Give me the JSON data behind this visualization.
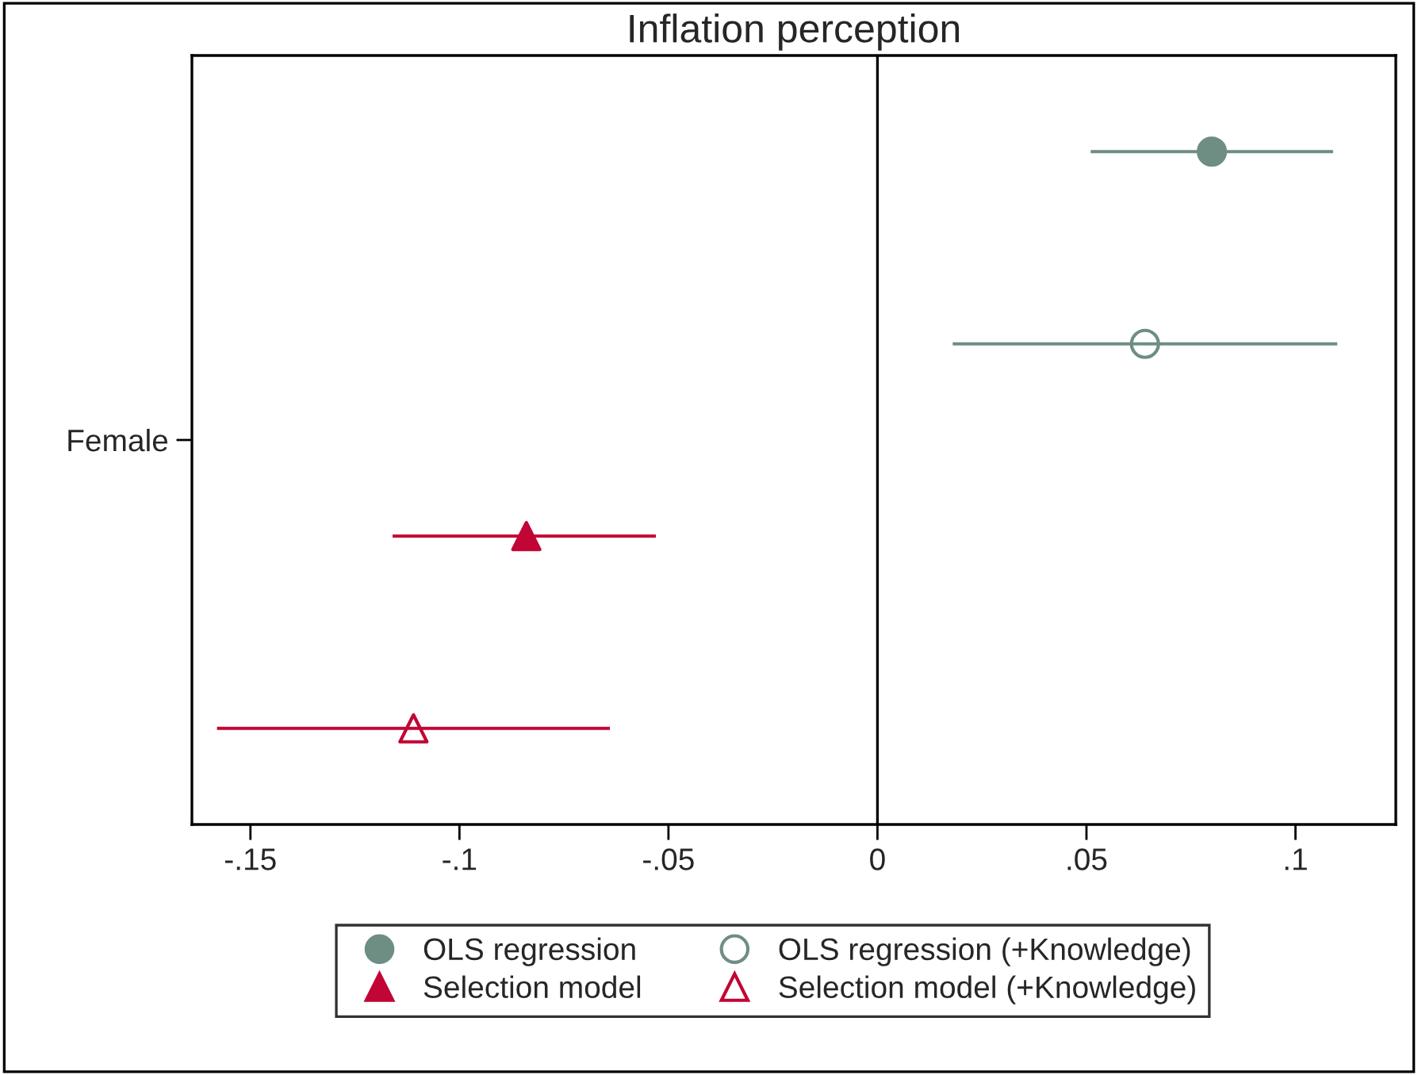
{
  "chart_data": {
    "type": "scatter",
    "orientation": "horizontal",
    "title": "Inflation perception",
    "categories": [
      null,
      null,
      null,
      null
    ],
    "series": [
      {
        "name": "OLS regression",
        "color": "#6e8e84",
        "marker": "circle",
        "values": [
          0.08,
          null,
          null,
          null
        ],
        "errors": [
          [
            0.051,
            0.109
          ],
          null,
          null,
          null
        ]
      },
      {
        "name": "OLS regression (+Knowledge)",
        "color": "#6e8e84",
        "marker": "circle",
        "values": [
          null,
          0.064,
          null,
          null
        ],
        "errors": [
          null,
          [
            0.018,
            0.11
          ],
          null,
          null
        ]
      },
      {
        "name": "Selection model",
        "color": "#c10534",
        "marker": "triangle",
        "values": [
          null,
          null,
          -0.084,
          null
        ],
        "errors": [
          null,
          null,
          [
            -0.116,
            -0.053
          ],
          null
        ]
      },
      {
        "name": "Selection model (+Knowledge)",
        "color": "#c10534",
        "marker": "triangle",
        "values": [
          null,
          null,
          null,
          -0.111
        ],
        "errors": [
          null,
          null,
          null,
          [
            -0.158,
            -0.064
          ]
        ]
      }
    ],
    "annotations": [
      "Female"
    ],
    "xlim": [
      -0.164,
      0.124
    ],
    "xticks": [
      {
        "value": -0.15,
        "label": "-.15"
      },
      {
        "value": -0.1,
        "label": "-.1"
      },
      {
        "value": -0.05,
        "label": "-.05"
      },
      0,
      {
        "value": 0.05,
        "label": ".05"
      },
      {
        "value": 0.1,
        "label": ".1"
      }
    ],
    "ref_lines": [
      {
        "axis": "x",
        "value": 0,
        "color": "#000000"
      }
    ],
    "grid": false,
    "legend": "bottom"
  }
}
